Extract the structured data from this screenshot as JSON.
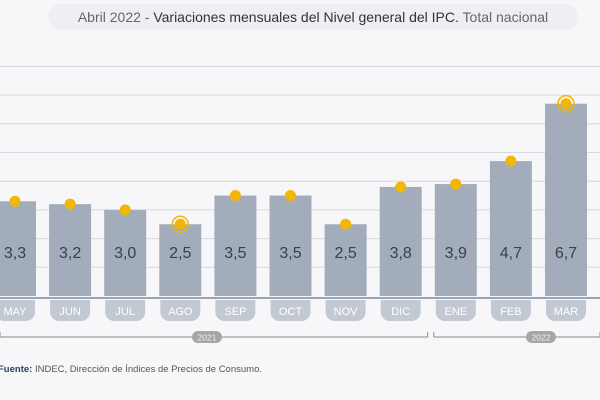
{
  "title": {
    "prefix": "Abril 2022 - ",
    "main": "Variaciones mensuales del Nivel general del IPC.",
    "suffix": " Total nacional"
  },
  "source": {
    "label": "Fuente:",
    "text": " INDEC, Dirección de Índices de Precios de Consumo."
  },
  "colors": {
    "bar": "#a3acbb",
    "marker": "#f2b705",
    "label_pill": "#c3c9d3",
    "year_pill": "#a6a6a6"
  },
  "chart_data": {
    "type": "bar",
    "categories": [
      "MAY",
      "JUN",
      "JUL",
      "AGO",
      "SEP",
      "OCT",
      "NOV",
      "DIC",
      "ENE",
      "FEB",
      "MAR"
    ],
    "values": [
      3.3,
      3.2,
      3.0,
      2.5,
      3.5,
      3.5,
      2.5,
      3.8,
      3.9,
      4.7,
      6.7
    ],
    "value_labels": [
      "3,3",
      "3,2",
      "3,0",
      "2,5",
      "3,5",
      "3,5",
      "2,5",
      "3,8",
      "3,9",
      "4,7",
      "6,7"
    ],
    "highlighted": [
      "AGO",
      "MAR"
    ],
    "groups": [
      {
        "label": "2021",
        "categories": [
          "MAY",
          "JUN",
          "JUL",
          "AGO",
          "SEP",
          "OCT",
          "NOV",
          "DIC"
        ]
      },
      {
        "label": "2022",
        "categories": [
          "ENE",
          "FEB",
          "MAR"
        ]
      }
    ],
    "ylim": [
      0,
      8
    ],
    "grid": true,
    "xlabel": "",
    "ylabel": ""
  }
}
